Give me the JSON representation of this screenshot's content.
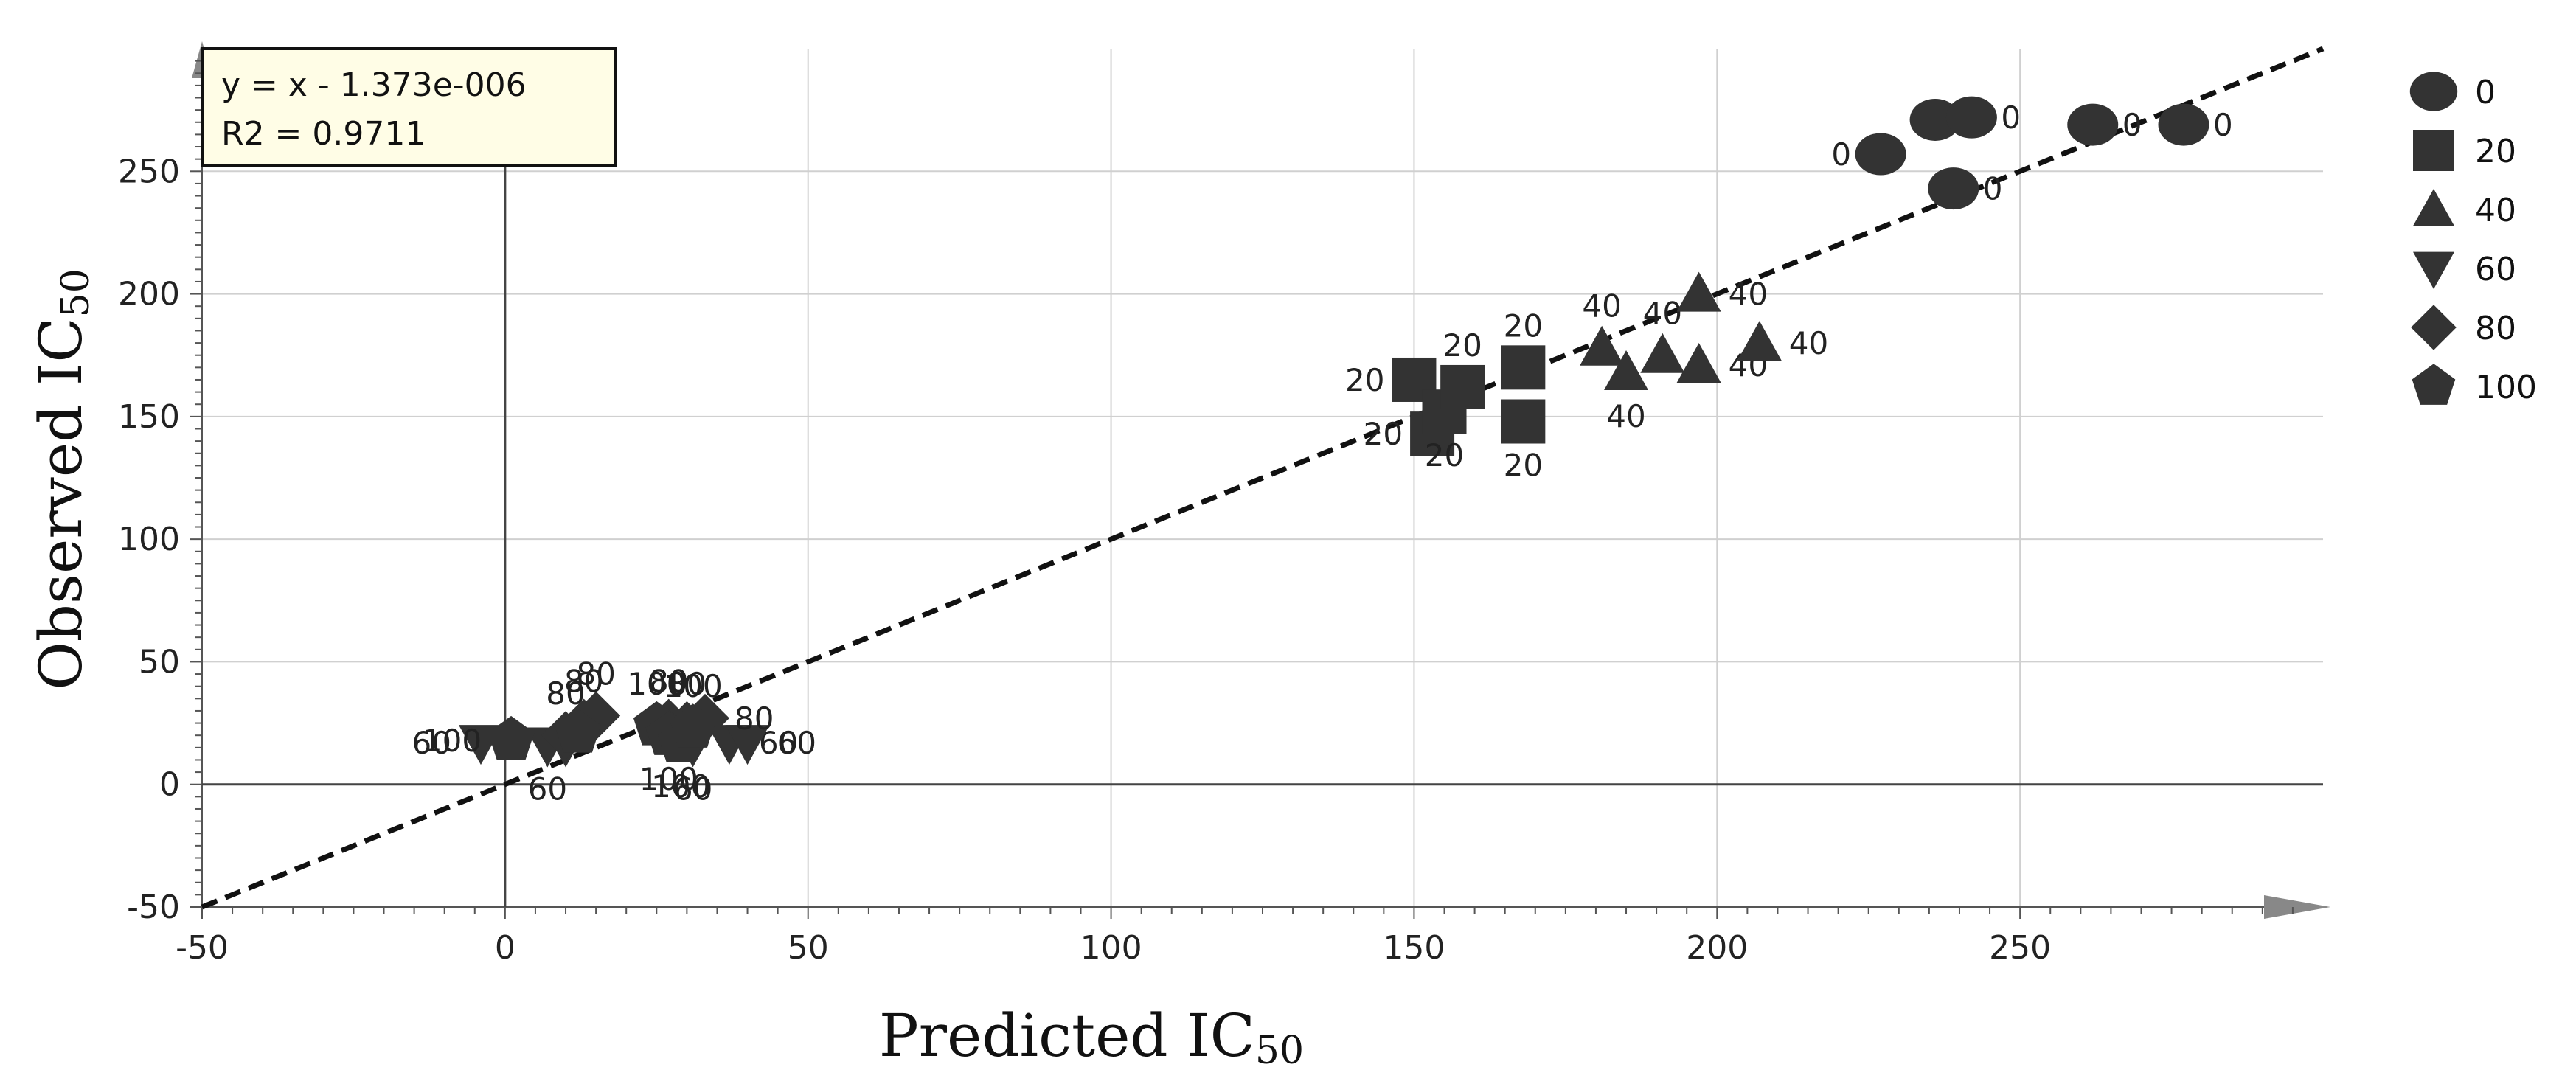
{
  "chart_data": {
    "type": "scatter",
    "xlabel_main": "Predicted IC",
    "xlabel_sub": "50",
    "ylabel_main": "Observed IC",
    "ylabel_sub": "50",
    "xlim": [
      -50,
      300
    ],
    "ylim": [
      -50,
      300
    ],
    "xticks": [
      -50,
      0,
      50,
      100,
      150,
      200,
      250
    ],
    "yticks": [
      -50,
      0,
      50,
      100,
      150,
      200,
      250
    ],
    "xtick_labels": [
      "-50",
      "0",
      "50",
      "100",
      "150",
      "200",
      "250"
    ],
    "ytick_labels": [
      "-50",
      "0",
      "50",
      "100",
      "150",
      "200",
      "250"
    ],
    "grid": true,
    "legend_position": "right",
    "equation_box": {
      "line1": "y = x - 1.373e-006",
      "line2": "R2 = 0.9711"
    },
    "fit_line": {
      "slope": 1,
      "intercept": -1.373e-06,
      "style": "dashed"
    },
    "colors": {
      "marker": "#333333",
      "grid": "#d0d0d0",
      "axis": "#555555",
      "box_fill": "#fffde6"
    },
    "series": [
      {
        "name": "0",
        "marker": "circle",
        "points": [
          {
            "x": 227,
            "y": 257,
            "label": "0",
            "label_pos": "left"
          },
          {
            "x": 236,
            "y": 271,
            "label": "",
            "label_pos": "right"
          },
          {
            "x": 242,
            "y": 272,
            "label": "0",
            "label_pos": "right"
          },
          {
            "x": 239,
            "y": 243,
            "label": "0",
            "label_pos": "right"
          },
          {
            "x": 262,
            "y": 269,
            "label": "0",
            "label_pos": "right"
          },
          {
            "x": 277,
            "y": 269,
            "label": "0",
            "label_pos": "right"
          }
        ]
      },
      {
        "name": "20",
        "marker": "square",
        "points": [
          {
            "x": 150,
            "y": 165,
            "label": "20",
            "label_pos": "left"
          },
          {
            "x": 153,
            "y": 143,
            "label": "20",
            "label_pos": "left"
          },
          {
            "x": 155,
            "y": 152,
            "label": "20",
            "label_pos": "below"
          },
          {
            "x": 158,
            "y": 162,
            "label": "20",
            "label_pos": "above"
          },
          {
            "x": 168,
            "y": 170,
            "label": "20",
            "label_pos": "above"
          },
          {
            "x": 168,
            "y": 148,
            "label": "20",
            "label_pos": "below"
          }
        ]
      },
      {
        "name": "40",
        "marker": "triangle-up",
        "points": [
          {
            "x": 181,
            "y": 178,
            "label": "40",
            "label_pos": "above"
          },
          {
            "x": 185,
            "y": 168,
            "label": "40",
            "label_pos": "below"
          },
          {
            "x": 191,
            "y": 175,
            "label": "40",
            "label_pos": "above"
          },
          {
            "x": 197,
            "y": 200,
            "label": "40",
            "label_pos": "right"
          },
          {
            "x": 197,
            "y": 171,
            "label": "40",
            "label_pos": "right"
          },
          {
            "x": 207,
            "y": 180,
            "label": "40",
            "label_pos": "right"
          }
        ]
      },
      {
        "name": "60",
        "marker": "triangle-down",
        "points": [
          {
            "x": -4,
            "y": 17,
            "label": "60",
            "label_pos": "left"
          },
          {
            "x": 7,
            "y": 16,
            "label": "60",
            "label_pos": "below"
          },
          {
            "x": 31,
            "y": 16,
            "label": "60",
            "label_pos": "below"
          },
          {
            "x": 37,
            "y": 17,
            "label": "60",
            "label_pos": "right"
          },
          {
            "x": 40,
            "y": 17,
            "label": "60",
            "label_pos": "right"
          },
          {
            "x": 10,
            "y": 16,
            "label": "",
            "label_pos": "right"
          }
        ]
      },
      {
        "name": "80",
        "marker": "diamond",
        "points": [
          {
            "x": 10,
            "y": 20,
            "label": "80",
            "label_pos": "above"
          },
          {
            "x": 13,
            "y": 25,
            "label": "80",
            "label_pos": "above"
          },
          {
            "x": 15,
            "y": 28,
            "label": "80",
            "label_pos": "above"
          },
          {
            "x": 27,
            "y": 25,
            "label": "80",
            "label_pos": "above"
          },
          {
            "x": 30,
            "y": 24,
            "label": "80",
            "label_pos": "above"
          },
          {
            "x": 33,
            "y": 27,
            "label": "80",
            "label_pos": "right"
          }
        ]
      },
      {
        "name": "100",
        "marker": "pentagon",
        "points": [
          {
            "x": 1,
            "y": 18,
            "label": "100",
            "label_pos": "left"
          },
          {
            "x": 25,
            "y": 24,
            "label": "100",
            "label_pos": "above"
          },
          {
            "x": 27,
            "y": 20,
            "label": "100",
            "label_pos": "below"
          },
          {
            "x": 29,
            "y": 17,
            "label": "100",
            "label_pos": "below"
          },
          {
            "x": 31,
            "y": 23,
            "label": "100",
            "label_pos": "above"
          },
          {
            "x": 12,
            "y": 21,
            "label": "",
            "label_pos": "right"
          }
        ]
      }
    ]
  }
}
